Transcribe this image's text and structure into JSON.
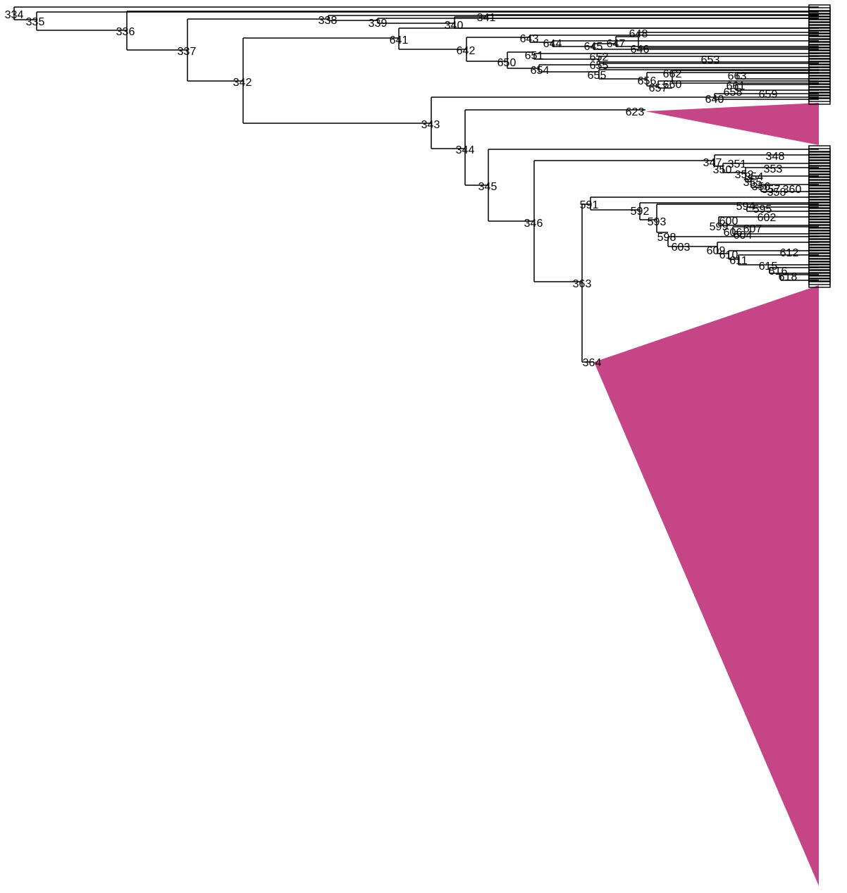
{
  "tree": {
    "collapsed_color": "#c64586",
    "internal_nodes": [
      {
        "id": "334",
        "label": "334"
      },
      {
        "id": "335",
        "label": "335"
      },
      {
        "id": "336",
        "label": "336"
      },
      {
        "id": "337",
        "label": "337"
      },
      {
        "id": "338",
        "label": "338"
      },
      {
        "id": "339",
        "label": "339"
      },
      {
        "id": "340",
        "label": "340"
      },
      {
        "id": "341",
        "label": "341"
      },
      {
        "id": "641",
        "label": "641"
      },
      {
        "id": "642",
        "label": "642"
      },
      {
        "id": "643",
        "label": "643"
      },
      {
        "id": "644",
        "label": "644"
      },
      {
        "id": "645",
        "label": "645"
      },
      {
        "id": "647",
        "label": "647"
      },
      {
        "id": "648",
        "label": "648"
      },
      {
        "id": "646",
        "label": "646"
      },
      {
        "id": "651",
        "label": "651"
      },
      {
        "id": "652",
        "label": "652"
      },
      {
        "id": "653",
        "label": "653"
      },
      {
        "id": "650",
        "label": "650"
      },
      {
        "id": "655a",
        "label": "655"
      },
      {
        "id": "654",
        "label": "654"
      },
      {
        "id": "655",
        "label": "655"
      },
      {
        "id": "656",
        "label": "656"
      },
      {
        "id": "657",
        "label": "657"
      },
      {
        "id": "660",
        "label": "660"
      },
      {
        "id": "662",
        "label": "662"
      },
      {
        "id": "663",
        "label": "663"
      },
      {
        "id": "661",
        "label": "661"
      },
      {
        "id": "658",
        "label": "658"
      },
      {
        "id": "659",
        "label": "659"
      },
      {
        "id": "640",
        "label": "640"
      },
      {
        "id": "342",
        "label": "342"
      },
      {
        "id": "343",
        "label": "343"
      },
      {
        "id": "623",
        "label": "623"
      },
      {
        "id": "344",
        "label": "344"
      },
      {
        "id": "345",
        "label": "345"
      },
      {
        "id": "346",
        "label": "346"
      },
      {
        "id": "347",
        "label": "347"
      },
      {
        "id": "351",
        "label": "351"
      },
      {
        "id": "348",
        "label": "348"
      },
      {
        "id": "350",
        "label": "350"
      },
      {
        "id": "352",
        "label": "352"
      },
      {
        "id": "353",
        "label": "353"
      },
      {
        "id": "354",
        "label": "354"
      },
      {
        "id": "355",
        "label": "355"
      },
      {
        "id": "356",
        "label": "356"
      },
      {
        "id": "357",
        "label": "357"
      },
      {
        "id": "358",
        "label": "358"
      },
      {
        "id": "360",
        "label": "360"
      },
      {
        "id": "591",
        "label": "591"
      },
      {
        "id": "592",
        "label": "592"
      },
      {
        "id": "593",
        "label": "593"
      },
      {
        "id": "594",
        "label": "594"
      },
      {
        "id": "595",
        "label": "595"
      },
      {
        "id": "600",
        "label": "600"
      },
      {
        "id": "602",
        "label": "602"
      },
      {
        "id": "599",
        "label": "599"
      },
      {
        "id": "606",
        "label": "606"
      },
      {
        "id": "607",
        "label": "607"
      },
      {
        "id": "604",
        "label": "604"
      },
      {
        "id": "598",
        "label": "598"
      },
      {
        "id": "603",
        "label": "603"
      },
      {
        "id": "609",
        "label": "609"
      },
      {
        "id": "610",
        "label": "610"
      },
      {
        "id": "611",
        "label": "611"
      },
      {
        "id": "612",
        "label": "612"
      },
      {
        "id": "615",
        "label": "615"
      },
      {
        "id": "616",
        "label": "616"
      },
      {
        "id": "618",
        "label": "618"
      },
      {
        "id": "363",
        "label": "363"
      },
      {
        "id": "364",
        "label": "364"
      }
    ]
  }
}
